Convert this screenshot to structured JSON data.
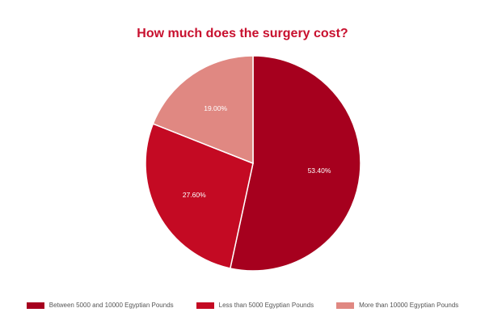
{
  "chart_data": {
    "type": "pie",
    "title": "How much does the surgery cost?",
    "slices": [
      {
        "label": "Between 5000 and 10000 Egyptian Pounds",
        "value": 53.4,
        "display": "53.40%",
        "color": "#a6001e"
      },
      {
        "label": "Less than 5000 Egyptian Pounds",
        "value": 27.6,
        "display": "27.60%",
        "color": "#c40a23"
      },
      {
        "label": "More than 10000 Egyptian Pounds",
        "value": 19.0,
        "display": "19.00%",
        "color": "#e08882"
      }
    ],
    "legend_position": "bottom"
  }
}
